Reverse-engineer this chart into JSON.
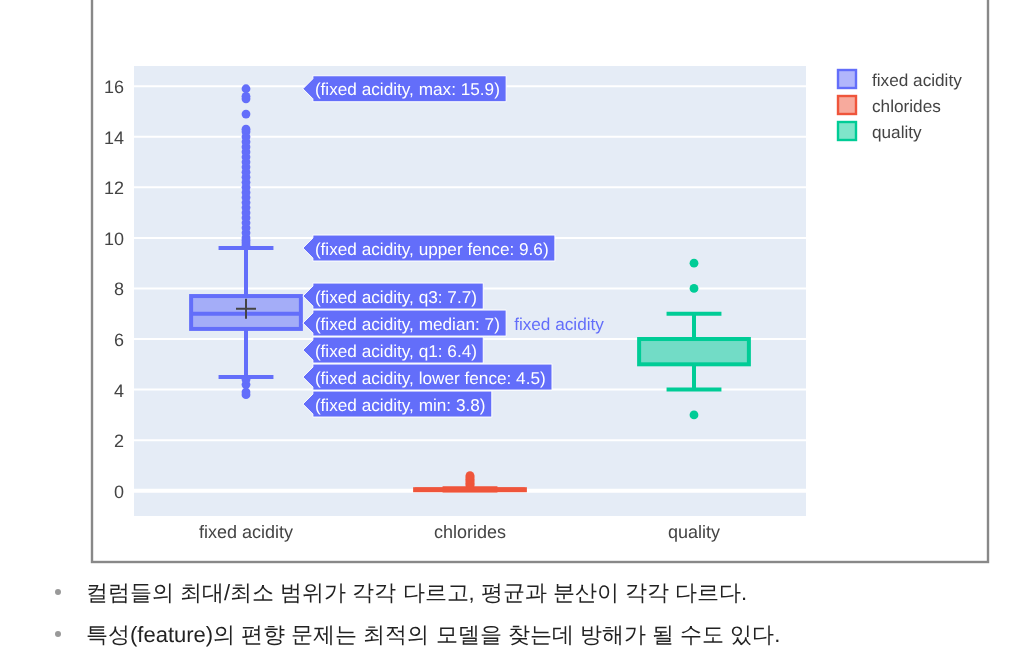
{
  "chart_data": {
    "type": "box",
    "categories": [
      "fixed acidity",
      "chlorides",
      "quality"
    ],
    "series": [
      {
        "name": "fixed acidity",
        "color": "#636efa",
        "boxes": [
          {
            "low": 4.5,
            "q1": 6.4,
            "median": 7,
            "q3": 7.7,
            "high": 9.6,
            "mean": 7.2,
            "outliers": [
              3.8,
              3.9,
              4.2,
              4.4,
              9.7,
              9.8,
              9.9,
              10.0,
              10.2,
              10.4,
              10.6,
              10.8,
              11.0,
              11.2,
              11.4,
              11.6,
              11.8,
              12.0,
              12.2,
              12.4,
              12.6,
              12.8,
              13.0,
              13.2,
              13.4,
              13.6,
              13.8,
              14.0,
              14.2,
              14.3,
              14.9,
              15.5,
              15.6,
              15.9
            ]
          },
          null,
          null
        ]
      },
      {
        "name": "chlorides",
        "color": "#ef553b",
        "boxes": [
          null,
          {
            "low": 0.01,
            "q1": 0.04,
            "median": 0.05,
            "q3": 0.06,
            "high": 0.1,
            "outliers": [
              0.2,
              0.25,
              0.3,
              0.35,
              0.4,
              0.45,
              0.5,
              0.55,
              0.6
            ]
          },
          null
        ]
      },
      {
        "name": "quality",
        "color": "#00cc96",
        "boxes": [
          null,
          null,
          {
            "low": 4,
            "q1": 5,
            "median": 6,
            "q3": 6,
            "high": 7,
            "outliers": [
              3,
              8,
              9
            ]
          }
        ]
      }
    ],
    "ylim": [
      -1,
      16.8
    ],
    "yticks": [
      0,
      2,
      4,
      6,
      8,
      10,
      12,
      14,
      16
    ],
    "grid": "y",
    "legend": "top right",
    "annotations": [
      "(fixed acidity, max: 15.9)",
      "(fixed acidity, upper fence: 9.6)",
      "(fixed acidity, q3: 7.7)",
      "(fixed acidity, median: 7)",
      "(fixed acidity, q1: 6.4)",
      "(fixed acidity, lower fence: 4.5)",
      "(fixed acidity, min: 3.8)",
      "fixed acidity",
      "컬럼들의 최대/최소 범위가 각각 다르고, 평균과 분산이 각각 다르다.",
      "특성(feature)의 편향 문제는 최적의 모델을 찾는데 방해가 될 수도 있다."
    ]
  }
}
